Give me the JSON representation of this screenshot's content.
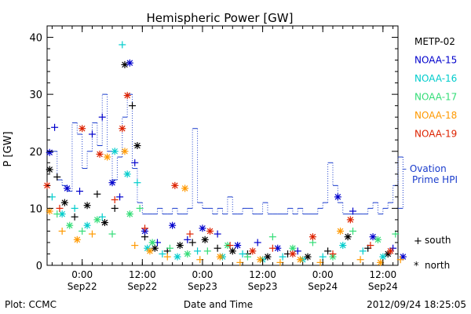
{
  "chart_data": {
    "type": "scatter",
    "title": "Hemispheric Power [GW]",
    "xlabel": "Date and Time",
    "ylabel": "P [GW]",
    "ylim": [
      0,
      42
    ],
    "yticks": [
      0,
      10,
      20,
      30,
      40
    ],
    "xlim_hours_since": "2012-09-21 17:00",
    "xticks": [
      {
        "time": "2012-09-22 00:00",
        "line1": "0:00",
        "line2": "Sep22"
      },
      {
        "time": "2012-09-22 12:00",
        "line1": "12:00",
        "line2": "Sep22"
      },
      {
        "time": "2012-09-23 00:00",
        "line1": "0:00",
        "line2": "Sep23"
      },
      {
        "time": "2012-09-23 12:00",
        "line1": "12:00",
        "line2": "Sep23"
      },
      {
        "time": "2012-09-24 00:00",
        "line1": "0:00",
        "line2": "Sep24"
      },
      {
        "time": "2012-09-24 12:00",
        "line1": "12:00",
        "line2": "Sep24"
      }
    ],
    "grid": false,
    "legend_position": "right",
    "series": [
      {
        "name": "METP-02",
        "color": "#000000",
        "points": [
          [
            "2012-09-21 17:30",
            16.8,
            "north"
          ],
          [
            "2012-09-21 19:00",
            15.5,
            "south"
          ],
          [
            "2012-09-21 20:30",
            11.0,
            "north"
          ],
          [
            "2012-09-21 22:30",
            8.5,
            "south"
          ],
          [
            "2012-09-22 01:00",
            10.5,
            "north"
          ],
          [
            "2012-09-22 03:00",
            12.5,
            "south"
          ],
          [
            "2012-09-22 04:30",
            7.5,
            "north"
          ],
          [
            "2012-09-22 06:30",
            10.0,
            "south"
          ],
          [
            "2012-09-22 08:30",
            35.2,
            "north"
          ],
          [
            "2012-09-22 10:00",
            28.0,
            "south"
          ],
          [
            "2012-09-22 11:00",
            21.0,
            "north"
          ],
          [
            "2012-09-22 12:30",
            5.0,
            "south"
          ],
          [
            "2012-09-22 14:30",
            3.0,
            "north"
          ],
          [
            "2012-09-22 17:00",
            2.5,
            "south"
          ],
          [
            "2012-09-22 19:30",
            3.5,
            "north"
          ],
          [
            "2012-09-22 22:00",
            4.0,
            "south"
          ],
          [
            "2012-09-23 00:30",
            4.5,
            "north"
          ],
          [
            "2012-09-23 03:00",
            3.0,
            "south"
          ],
          [
            "2012-09-23 06:00",
            2.5,
            "north"
          ],
          [
            "2012-09-23 09:00",
            2.0,
            "south"
          ],
          [
            "2012-09-23 13:00",
            1.5,
            "north"
          ],
          [
            "2012-09-23 17:00",
            2.0,
            "south"
          ],
          [
            "2012-09-23 21:00",
            1.5,
            "north"
          ],
          [
            "2012-09-24 01:00",
            2.5,
            "south"
          ],
          [
            "2012-09-24 05:00",
            5.0,
            "north"
          ],
          [
            "2012-09-24 09:00",
            3.0,
            "south"
          ],
          [
            "2012-09-24 13:00",
            2.0,
            "north"
          ]
        ]
      },
      {
        "name": "NOAA-15",
        "color": "#0000cc",
        "points": [
          [
            "2012-09-21 17:30",
            19.8,
            "north"
          ],
          [
            "2012-09-21 18:30",
            24.2,
            "south"
          ],
          [
            "2012-09-21 21:00",
            13.5,
            "north"
          ],
          [
            "2012-09-21 23:30",
            13.0,
            "south"
          ],
          [
            "2012-09-22 02:00",
            23.0,
            "south"
          ],
          [
            "2012-09-22 04:00",
            26.0,
            "south"
          ],
          [
            "2012-09-22 06:00",
            14.5,
            "north"
          ],
          [
            "2012-09-22 07:30",
            12.0,
            "south"
          ],
          [
            "2012-09-22 09:30",
            35.5,
            "north"
          ],
          [
            "2012-09-22 10:30",
            18.0,
            "south"
          ],
          [
            "2012-09-22 12:30",
            6.0,
            "north"
          ],
          [
            "2012-09-22 15:00",
            4.0,
            "south"
          ],
          [
            "2012-09-22 18:00",
            7.0,
            "north"
          ],
          [
            "2012-09-22 21:00",
            4.5,
            "south"
          ],
          [
            "2012-09-23 00:00",
            6.5,
            "north"
          ],
          [
            "2012-09-23 03:00",
            5.5,
            "south"
          ],
          [
            "2012-09-23 07:00",
            3.5,
            "north"
          ],
          [
            "2012-09-23 11:00",
            4.0,
            "south"
          ],
          [
            "2012-09-23 15:00",
            3.0,
            "north"
          ],
          [
            "2012-09-23 19:00",
            2.5,
            "south"
          ],
          [
            "2012-09-24 03:00",
            12.0,
            "north"
          ],
          [
            "2012-09-24 06:00",
            9.5,
            "south"
          ],
          [
            "2012-09-24 10:00",
            5.0,
            "north"
          ],
          [
            "2012-09-24 14:00",
            3.0,
            "south"
          ],
          [
            "2012-09-24 16:00",
            1.5,
            "north"
          ]
        ]
      },
      {
        "name": "NOAA-16",
        "color": "#00cccc",
        "points": [
          [
            "2012-09-21 18:00",
            12.0,
            "south"
          ],
          [
            "2012-09-21 20:00",
            9.0,
            "north"
          ],
          [
            "2012-09-21 22:30",
            10.0,
            "south"
          ],
          [
            "2012-09-22 01:00",
            7.0,
            "north"
          ],
          [
            "2012-09-22 04:00",
            8.5,
            "south"
          ],
          [
            "2012-09-22 06:30",
            20.0,
            "north"
          ],
          [
            "2012-09-22 08:00",
            38.7,
            "south"
          ],
          [
            "2012-09-22 09:00",
            16.0,
            "north"
          ],
          [
            "2012-09-22 11:00",
            14.5,
            "south"
          ],
          [
            "2012-09-22 13:00",
            3.0,
            "north"
          ],
          [
            "2012-09-22 16:00",
            2.0,
            "south"
          ],
          [
            "2012-09-22 19:00",
            1.5,
            "north"
          ],
          [
            "2012-09-22 23:00",
            2.5,
            "south"
          ],
          [
            "2012-09-23 04:00",
            1.5,
            "north"
          ],
          [
            "2012-09-23 08:00",
            2.0,
            "south"
          ],
          [
            "2012-09-23 12:00",
            1.0,
            "north"
          ],
          [
            "2012-09-23 16:00",
            1.5,
            "south"
          ],
          [
            "2012-09-23 20:00",
            1.0,
            "north"
          ],
          [
            "2012-09-24 00:00",
            1.5,
            "south"
          ],
          [
            "2012-09-24 04:00",
            3.5,
            "north"
          ],
          [
            "2012-09-24 08:00",
            2.5,
            "south"
          ],
          [
            "2012-09-24 12:00",
            1.5,
            "north"
          ]
        ]
      },
      {
        "name": "NOAA-17",
        "color": "#33dd77",
        "points": [
          [
            "2012-09-21 19:00",
            9.0,
            "south"
          ],
          [
            "2012-09-21 21:30",
            7.0,
            "north"
          ],
          [
            "2012-09-22 00:00",
            6.0,
            "south"
          ],
          [
            "2012-09-22 03:00",
            8.0,
            "north"
          ],
          [
            "2012-09-22 06:00",
            5.5,
            "south"
          ],
          [
            "2012-09-22 09:30",
            9.0,
            "north"
          ],
          [
            "2012-09-22 11:30",
            10.0,
            "south"
          ],
          [
            "2012-09-22 14:00",
            4.0,
            "north"
          ],
          [
            "2012-09-22 17:30",
            3.0,
            "south"
          ],
          [
            "2012-09-22 21:00",
            2.0,
            "north"
          ],
          [
            "2012-09-23 01:00",
            2.5,
            "south"
          ],
          [
            "2012-09-23 05:00",
            3.5,
            "north"
          ],
          [
            "2012-09-23 09:00",
            1.5,
            "south"
          ],
          [
            "2012-09-23 14:00",
            5.0,
            "south"
          ],
          [
            "2012-09-23 18:00",
            3.0,
            "north"
          ],
          [
            "2012-09-23 22:00",
            4.0,
            "south"
          ],
          [
            "2012-09-24 02:00",
            1.5,
            "north"
          ],
          [
            "2012-09-24 06:00",
            6.0,
            "south"
          ],
          [
            "2012-09-24 11:00",
            4.5,
            "north"
          ],
          [
            "2012-09-24 14:30",
            5.5,
            "south"
          ]
        ]
      },
      {
        "name": "NOAA-18",
        "color": "#ff9900",
        "points": [
          [
            "2012-09-21 17:30",
            9.5,
            "north"
          ],
          [
            "2012-09-21 20:00",
            6.0,
            "south"
          ],
          [
            "2012-09-21 23:00",
            4.5,
            "north"
          ],
          [
            "2012-09-22 02:00",
            5.5,
            "south"
          ],
          [
            "2012-09-22 05:00",
            19.0,
            "north"
          ],
          [
            "2012-09-22 08:30",
            20.0,
            "north"
          ],
          [
            "2012-09-22 10:30",
            3.5,
            "south"
          ],
          [
            "2012-09-22 13:30",
            2.5,
            "north"
          ],
          [
            "2012-09-22 17:00",
            1.5,
            "south"
          ],
          [
            "2012-09-22 20:30",
            13.5,
            "north"
          ],
          [
            "2012-09-22 23:30",
            1.0,
            "south"
          ],
          [
            "2012-09-23 03:30",
            1.5,
            "north"
          ],
          [
            "2012-09-23 07:30",
            0.5,
            "south"
          ],
          [
            "2012-09-23 11:30",
            1.0,
            "north"
          ],
          [
            "2012-09-23 15:30",
            0.5,
            "south"
          ],
          [
            "2012-09-23 19:30",
            1.0,
            "north"
          ],
          [
            "2012-09-23 23:30",
            0.5,
            "south"
          ],
          [
            "2012-09-24 03:30",
            6.0,
            "north"
          ],
          [
            "2012-09-24 07:30",
            1.0,
            "south"
          ],
          [
            "2012-09-24 11:30",
            0.5,
            "north"
          ],
          [
            "2012-09-24 15:30",
            1.0,
            "south"
          ]
        ]
      },
      {
        "name": "NOAA-19",
        "color": "#dd2200",
        "points": [
          [
            "2012-09-21 17:00",
            14.0,
            "north"
          ],
          [
            "2012-09-21 19:30",
            10.0,
            "south"
          ],
          [
            "2012-09-22 00:00",
            24.0,
            "north"
          ],
          [
            "2012-09-22 03:30",
            19.5,
            "north"
          ],
          [
            "2012-09-22 06:30",
            11.5,
            "south"
          ],
          [
            "2012-09-22 08:00",
            24.0,
            "north"
          ],
          [
            "2012-09-22 09:00",
            29.8,
            "north"
          ],
          [
            "2012-09-22 12:30",
            6.5,
            "south"
          ],
          [
            "2012-09-22 18:30",
            14.0,
            "north"
          ],
          [
            "2012-09-22 21:30",
            5.5,
            "south"
          ],
          [
            "2012-09-23 01:30",
            6.0,
            "north"
          ],
          [
            "2012-09-23 05:30",
            3.5,
            "south"
          ],
          [
            "2012-09-23 10:00",
            2.5,
            "north"
          ],
          [
            "2012-09-23 14:00",
            3.0,
            "south"
          ],
          [
            "2012-09-23 18:00",
            2.0,
            "north"
          ],
          [
            "2012-09-23 22:00",
            5.0,
            "north"
          ],
          [
            "2012-09-24 02:00",
            2.0,
            "south"
          ],
          [
            "2012-09-24 05:30",
            8.0,
            "north"
          ],
          [
            "2012-09-24 09:30",
            3.5,
            "south"
          ],
          [
            "2012-09-24 13:30",
            2.5,
            "north"
          ]
        ]
      }
    ],
    "ovation": {
      "name": "Ovation Prime HPI",
      "color": "#1a3ccc",
      "points": [
        [
          "2012-09-21 17:00",
          20
        ],
        [
          "2012-09-21 19:00",
          15
        ],
        [
          "2012-09-21 20:00",
          14
        ],
        [
          "2012-09-21 21:00",
          13
        ],
        [
          "2012-09-21 22:00",
          25
        ],
        [
          "2012-09-21 23:00",
          23
        ],
        [
          "2012-09-22 00:00",
          17
        ],
        [
          "2012-09-22 01:00",
          20
        ],
        [
          "2012-09-22 02:00",
          25
        ],
        [
          "2012-09-22 03:00",
          21
        ],
        [
          "2012-09-22 04:00",
          30
        ],
        [
          "2012-09-22 05:00",
          20
        ],
        [
          "2012-09-22 06:00",
          15
        ],
        [
          "2012-09-22 07:00",
          19
        ],
        [
          "2012-09-22 08:00",
          26
        ],
        [
          "2012-09-22 09:00",
          30
        ],
        [
          "2012-09-22 10:00",
          17
        ],
        [
          "2012-09-22 11:00",
          11
        ],
        [
          "2012-09-22 12:00",
          9
        ],
        [
          "2012-09-22 13:00",
          9
        ],
        [
          "2012-09-22 14:00",
          9
        ],
        [
          "2012-09-22 15:00",
          10
        ],
        [
          "2012-09-22 16:00",
          9
        ],
        [
          "2012-09-22 17:00",
          9
        ],
        [
          "2012-09-22 18:00",
          10
        ],
        [
          "2012-09-22 19:00",
          9
        ],
        [
          "2012-09-22 20:00",
          9
        ],
        [
          "2012-09-22 21:00",
          10
        ],
        [
          "2012-09-22 22:00",
          24
        ],
        [
          "2012-09-22 23:00",
          11
        ],
        [
          "2012-09-23 00:00",
          10
        ],
        [
          "2012-09-23 01:00",
          10
        ],
        [
          "2012-09-23 02:00",
          9
        ],
        [
          "2012-09-23 03:00",
          10
        ],
        [
          "2012-09-23 04:00",
          9
        ],
        [
          "2012-09-23 05:00",
          12
        ],
        [
          "2012-09-23 06:00",
          9
        ],
        [
          "2012-09-23 07:00",
          9
        ],
        [
          "2012-09-23 08:00",
          10
        ],
        [
          "2012-09-23 09:00",
          10
        ],
        [
          "2012-09-23 10:00",
          9
        ],
        [
          "2012-09-23 11:00",
          9
        ],
        [
          "2012-09-23 12:00",
          11
        ],
        [
          "2012-09-23 13:00",
          9
        ],
        [
          "2012-09-23 14:00",
          9
        ],
        [
          "2012-09-23 15:00",
          9
        ],
        [
          "2012-09-23 16:00",
          9
        ],
        [
          "2012-09-23 17:00",
          10
        ],
        [
          "2012-09-23 18:00",
          9
        ],
        [
          "2012-09-23 19:00",
          10
        ],
        [
          "2012-09-23 20:00",
          9
        ],
        [
          "2012-09-23 21:00",
          9
        ],
        [
          "2012-09-23 22:00",
          9
        ],
        [
          "2012-09-23 23:00",
          10
        ],
        [
          "2012-09-24 00:00",
          11
        ],
        [
          "2012-09-24 01:00",
          18
        ],
        [
          "2012-09-24 02:00",
          14
        ],
        [
          "2012-09-24 03:00",
          11
        ],
        [
          "2012-09-24 04:00",
          9
        ],
        [
          "2012-09-24 05:00",
          9
        ],
        [
          "2012-09-24 06:00",
          9
        ],
        [
          "2012-09-24 07:00",
          9
        ],
        [
          "2012-09-24 08:00",
          9
        ],
        [
          "2012-09-24 09:00",
          10
        ],
        [
          "2012-09-24 10:00",
          11
        ],
        [
          "2012-09-24 11:00",
          9
        ],
        [
          "2012-09-24 12:00",
          10
        ],
        [
          "2012-09-24 13:00",
          11
        ],
        [
          "2012-09-24 14:00",
          14
        ],
        [
          "2012-09-24 15:00",
          19
        ],
        [
          "2012-09-24 16:00",
          10
        ]
      ]
    }
  },
  "legend": {
    "south_symbol": "+",
    "south_label": "south",
    "north_symbol": "*",
    "north_label": "north",
    "ovation_line1": "– Ovation",
    "ovation_line2": "Prime HPI"
  },
  "footer": {
    "plot_credit": "Plot: CCMC",
    "timestamp": "2012/09/24 18:25:05"
  }
}
